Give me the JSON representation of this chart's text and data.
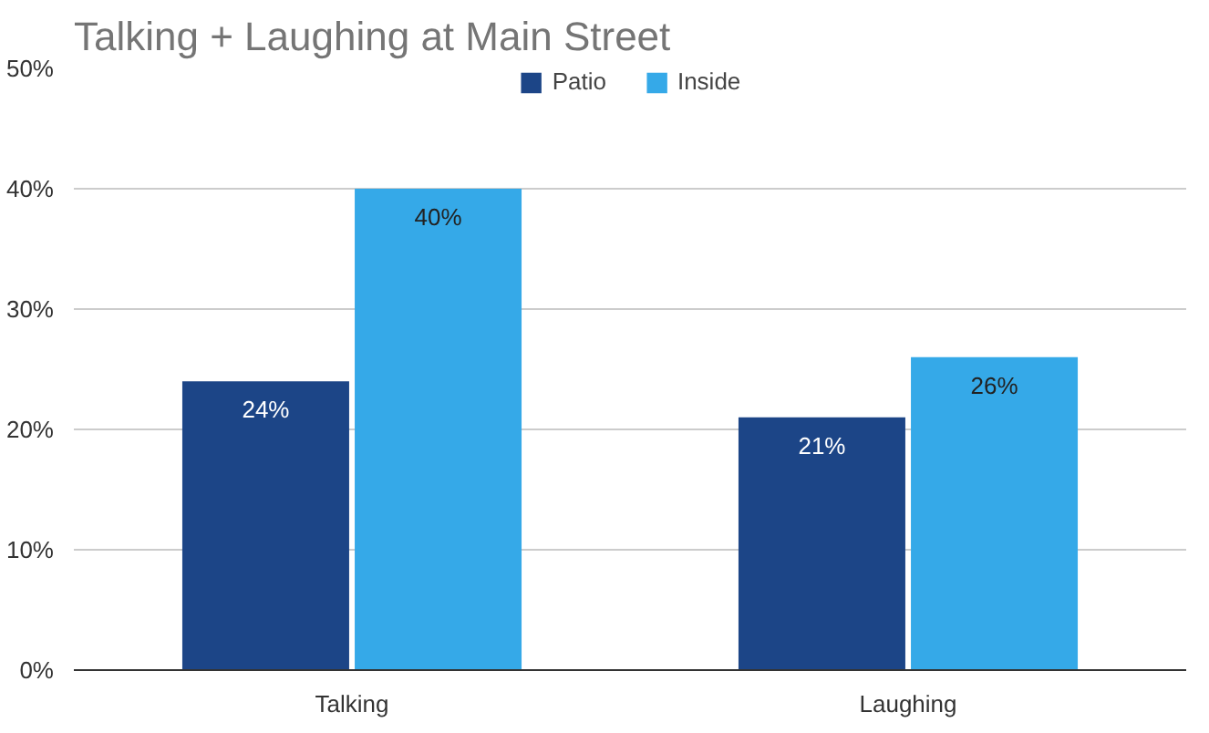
{
  "chart_data": {
    "type": "bar",
    "title": "Talking + Laughing at Main Street",
    "categories": [
      "Talking",
      "Laughing"
    ],
    "series": [
      {
        "name": "Patio",
        "color": "#1c4587",
        "values": [
          24,
          21
        ],
        "value_labels": [
          "24%",
          "21%"
        ]
      },
      {
        "name": "Inside",
        "color": "#35a9e8",
        "values": [
          40,
          26
        ],
        "value_labels": [
          "40%",
          "26%"
        ]
      }
    ],
    "ylim": [
      0,
      50
    ],
    "yticks": [
      {
        "value": 0,
        "label": "0%"
      },
      {
        "value": 10,
        "label": "10%"
      },
      {
        "value": 20,
        "label": "20%"
      },
      {
        "value": 30,
        "label": "30%"
      },
      {
        "value": 40,
        "label": "40%"
      },
      {
        "value": 50,
        "label": "50%"
      }
    ],
    "grid": "y",
    "legend": "top"
  }
}
